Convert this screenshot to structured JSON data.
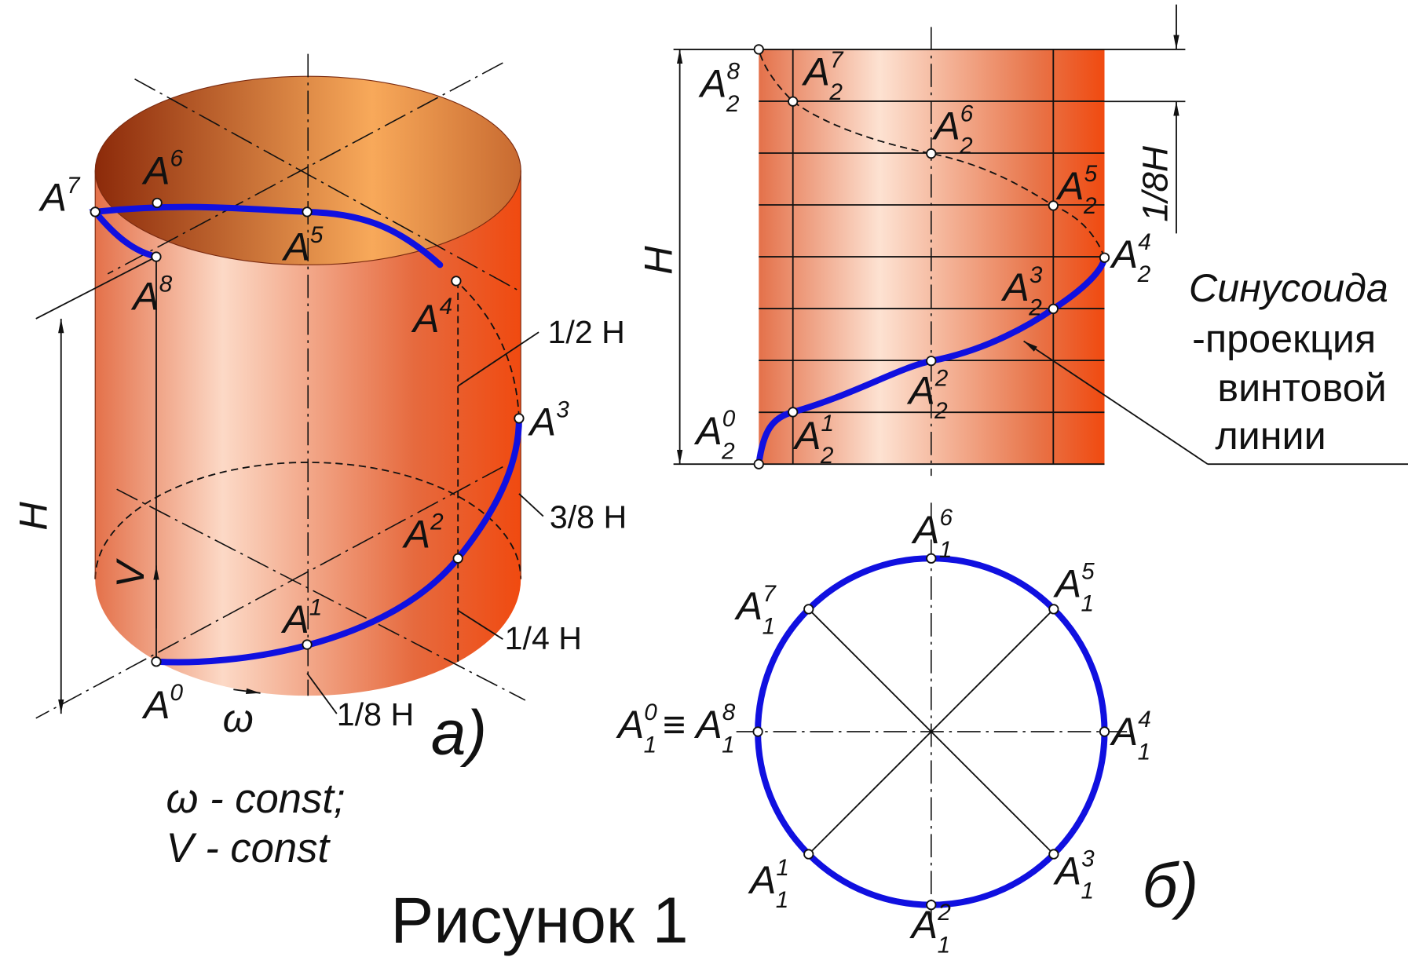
{
  "figure_a": {
    "label": "a)",
    "height": "H",
    "velocity": "V",
    "omega": "ω",
    "dims": [
      "1/2 H",
      "3/8 H",
      "1/4 H",
      "1/8 H"
    ],
    "conditions": [
      "ω - const;",
      "V - const"
    ],
    "points": [
      {
        "base": "A",
        "sup": "0"
      },
      {
        "base": "A",
        "sup": "1"
      },
      {
        "base": "A",
        "sup": "2"
      },
      {
        "base": "A",
        "sup": "3"
      },
      {
        "base": "A",
        "sup": "4"
      },
      {
        "base": "A",
        "sup": "5"
      },
      {
        "base": "A",
        "sup": "6"
      },
      {
        "base": "A",
        "sup": "7"
      },
      {
        "base": "A",
        "sup": "8"
      }
    ]
  },
  "figure_front": {
    "height": "H",
    "step": "1/8H",
    "note": [
      "Синусоида",
      "-проекция",
      "винтовой",
      "линии"
    ],
    "points": [
      {
        "base": "A",
        "sup": "0",
        "sub": "2"
      },
      {
        "base": "A",
        "sup": "1",
        "sub": "2"
      },
      {
        "base": "A",
        "sup": "2",
        "sub": "2"
      },
      {
        "base": "A",
        "sup": "3",
        "sub": "2"
      },
      {
        "base": "A",
        "sup": "4",
        "sub": "2"
      },
      {
        "base": "A",
        "sup": "5",
        "sub": "2"
      },
      {
        "base": "A",
        "sup": "6",
        "sub": "2"
      },
      {
        "base": "A",
        "sup": "7",
        "sub": "2"
      },
      {
        "base": "A",
        "sup": "8",
        "sub": "2"
      }
    ]
  },
  "figure_b": {
    "label": "б)",
    "coincide": "≡",
    "points": [
      {
        "base": "A",
        "sup": "0",
        "sub": "1"
      },
      {
        "base": "A",
        "sup": "1",
        "sub": "1"
      },
      {
        "base": "A",
        "sup": "2",
        "sub": "1"
      },
      {
        "base": "A",
        "sup": "3",
        "sub": "1"
      },
      {
        "base": "A",
        "sup": "4",
        "sub": "1"
      },
      {
        "base": "A",
        "sup": "5",
        "sub": "1"
      },
      {
        "base": "A",
        "sup": "6",
        "sub": "1"
      },
      {
        "base": "A",
        "sup": "7",
        "sub": "1"
      },
      {
        "base": "A",
        "sup": "8",
        "sub": "1"
      }
    ]
  },
  "caption": "Рисунок 1"
}
